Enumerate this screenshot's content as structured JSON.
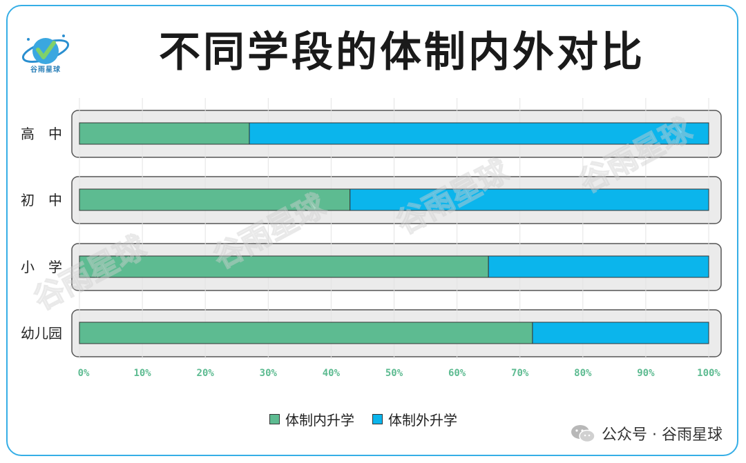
{
  "title": "不同学段的体制内外对比",
  "logo": {
    "text": "谷雨星球",
    "icon": "planet-logo-icon"
  },
  "watermark_text": "谷雨星球",
  "footer": {
    "text": "公众号 · 谷雨星球",
    "icon": "wechat-icon"
  },
  "colors": {
    "inside": "#5dbb91",
    "outside": "#0bb5ec",
    "frame": "#35aee6",
    "tick": "#5dbb91"
  },
  "chart_data": {
    "type": "bar",
    "orientation": "horizontal",
    "stacked": "percent",
    "categories": [
      "高　中",
      "初　中",
      "小　学",
      "幼儿园"
    ],
    "series": [
      {
        "name": "体制内升学",
        "values": [
          27,
          43,
          65,
          72
        ]
      },
      {
        "name": "体制外升学",
        "values": [
          73,
          57,
          35,
          28
        ]
      }
    ],
    "xlim": [
      0,
      100
    ],
    "x_ticks": [
      "0%",
      "10%",
      "20%",
      "30%",
      "40%",
      "50%",
      "60%",
      "70%",
      "80%",
      "90%",
      "100%"
    ],
    "grid": true,
    "legend": "bottom-center"
  }
}
